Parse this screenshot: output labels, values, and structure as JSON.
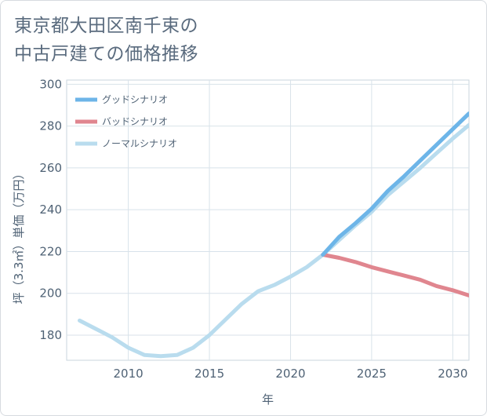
{
  "title_lines": [
    "東京都大田区南千束の",
    "中古戸建ての価格推移"
  ],
  "chart_data": {
    "type": "line",
    "xlabel": "年",
    "ylabel": "坪（3.3㎡）単価（万円）",
    "xlim": [
      2006.2,
      2031
    ],
    "ylim": [
      168,
      302
    ],
    "xticks": [
      2010,
      2015,
      2020,
      2025,
      2030
    ],
    "yticks": [
      180,
      200,
      220,
      240,
      260,
      280,
      300
    ],
    "grid": true,
    "legend_position": "top-left",
    "series": [
      {
        "name": "グッドシナリオ",
        "color": "#6db5e8",
        "x": [
          2022,
          2023,
          2024,
          2025,
          2026,
          2027,
          2028,
          2029,
          2030,
          2031
        ],
        "y": [
          218.5,
          227,
          233.5,
          240.5,
          249,
          256,
          263.5,
          271,
          278.5,
          286
        ]
      },
      {
        "name": "バッドシナリオ",
        "color": "#e0868f",
        "x": [
          2022,
          2023,
          2024,
          2025,
          2026,
          2027,
          2028,
          2029,
          2030,
          2031
        ],
        "y": [
          218.5,
          217,
          215,
          212.5,
          210.5,
          208.5,
          206.5,
          203.5,
          201.5,
          199
        ]
      },
      {
        "name": "ノーマルシナリオ",
        "color": "#b9dcee",
        "x": [
          2007,
          2008,
          2009,
          2010,
          2011,
          2012,
          2013,
          2014,
          2015,
          2016,
          2017,
          2018,
          2019,
          2020,
          2021,
          2022,
          2023,
          2024,
          2025,
          2026,
          2027,
          2028,
          2029,
          2030,
          2031
        ],
        "y": [
          187,
          183,
          179,
          174,
          170.5,
          170,
          170.5,
          174,
          180,
          187.5,
          195,
          201,
          204,
          208,
          212.5,
          218.5,
          225.5,
          232.5,
          239,
          247,
          253.5,
          260,
          267,
          274,
          280.5
        ]
      }
    ]
  }
}
